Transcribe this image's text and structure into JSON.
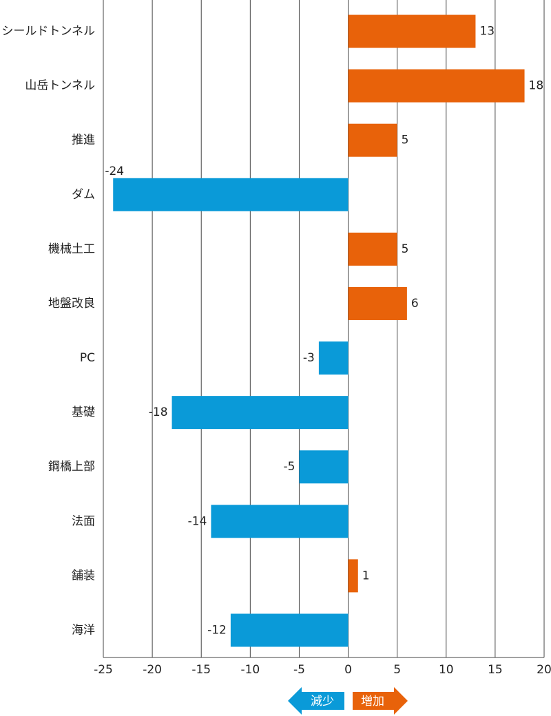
{
  "chart_data": {
    "type": "bar",
    "orientation": "horizontal",
    "categories": [
      "シールドトンネル",
      "山岳トンネル",
      "推進",
      "ダム",
      "機械土工",
      "地盤改良",
      "PC",
      "基礎",
      "鋼橋上部",
      "法面",
      "舗装",
      "海洋"
    ],
    "values": [
      13,
      18,
      5,
      -24,
      5,
      6,
      -3,
      -18,
      -5,
      -14,
      1,
      -12
    ],
    "positive_color": "#e8620a",
    "negative_color": "#0a9ad8",
    "xlim": [
      -25,
      20
    ],
    "xticks": [
      -25,
      -20,
      -15,
      -10,
      -5,
      0,
      5,
      10,
      15,
      20
    ],
    "grid": true,
    "legend": {
      "decrease": "減少",
      "increase": "増加"
    }
  }
}
